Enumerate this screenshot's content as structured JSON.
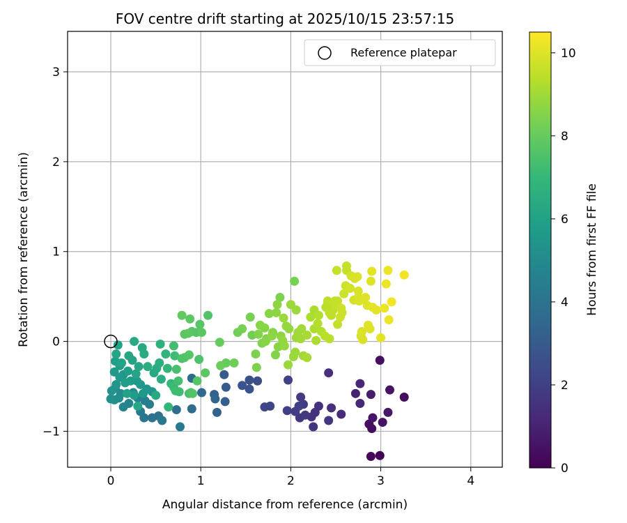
{
  "chart_data": {
    "type": "scatter",
    "title": "FOV centre drift starting at 2025/10/15 23:57:15",
    "xlabel": "Angular distance from reference (arcmin)",
    "ylabel": "Rotation from reference (arcmin)",
    "xlim": [
      -0.48,
      4.35
    ],
    "ylim": [
      -1.4,
      3.45
    ],
    "xticks": [
      0,
      1,
      2,
      3,
      4
    ],
    "yticks": [
      -1,
      0,
      1,
      2,
      3
    ],
    "xtick_labels": [
      "0",
      "1",
      "2",
      "3",
      "4"
    ],
    "ytick_labels": [
      "−1",
      "0",
      "1",
      "2",
      "3"
    ],
    "grid": true,
    "legend": {
      "placement": "top-right",
      "entries": [
        "Reference platepar"
      ]
    },
    "reference_point": {
      "x": 0,
      "y": 0
    },
    "colorbar": {
      "label": "Hours from first FF file",
      "range": [
        0,
        10.5
      ],
      "ticks": [
        0,
        2,
        4,
        6,
        8,
        10
      ],
      "tick_labels": [
        "0",
        "2",
        "4",
        "6",
        "8",
        "10"
      ],
      "colormap": [
        "#440154",
        "#482878",
        "#3e4989",
        "#31688e",
        "#26828e",
        "#1f9e89",
        "#35b779",
        "#6ece58",
        "#b5de2b",
        "#fde725"
      ]
    },
    "series": [
      {
        "points": [
          [
            2.99,
            -1.27,
            0.1
          ],
          [
            2.89,
            -1.28,
            0.2
          ],
          [
            2.9,
            -0.97,
            0.3
          ],
          [
            2.87,
            -0.92,
            0.4
          ],
          [
            3.02,
            -0.9,
            0.5
          ],
          [
            2.91,
            -0.85,
            0.6
          ],
          [
            3.08,
            -0.79,
            0.7
          ],
          [
            2.99,
            -0.21,
            0.4
          ],
          [
            3.1,
            -0.54,
            0.5
          ],
          [
            3.26,
            -0.62,
            0.4
          ],
          [
            2.89,
            -0.59,
            0.8
          ],
          [
            2.72,
            -0.58,
            1.0
          ],
          [
            2.77,
            -0.47,
            1.1
          ],
          [
            2.77,
            -0.69,
            1.2
          ],
          [
            2.56,
            -0.81,
            1.3
          ],
          [
            2.45,
            -0.74,
            1.4
          ],
          [
            2.31,
            -0.72,
            1.5
          ],
          [
            2.27,
            -0.79,
            1.5
          ],
          [
            2.23,
            -0.84,
            1.6
          ],
          [
            2.25,
            -0.95,
            1.6
          ],
          [
            2.42,
            -0.88,
            1.7
          ],
          [
            2.42,
            -0.35,
            1.5
          ],
          [
            2.11,
            -0.62,
            1.8
          ],
          [
            2.14,
            -0.7,
            1.9
          ],
          [
            2.09,
            -0.72,
            2.0
          ],
          [
            2.05,
            -0.78,
            1.9
          ],
          [
            2.16,
            -0.82,
            1.8
          ],
          [
            2.1,
            -0.85,
            1.7
          ],
          [
            1.96,
            -0.77,
            2.0
          ],
          [
            1.97,
            -0.43,
            2.1
          ],
          [
            1.77,
            -0.72,
            2.2
          ],
          [
            1.71,
            -0.73,
            2.2
          ],
          [
            1.63,
            -0.44,
            2.5
          ],
          [
            1.54,
            -0.43,
            2.6
          ],
          [
            1.54,
            -0.53,
            2.7
          ],
          [
            1.46,
            -0.49,
            2.8
          ],
          [
            1.26,
            -0.37,
            3.0
          ],
          [
            1.28,
            -0.51,
            3.1
          ],
          [
            1.27,
            -0.67,
            3.2
          ],
          [
            1.15,
            -0.59,
            3.3
          ],
          [
            1.16,
            -0.64,
            3.4
          ],
          [
            1.18,
            -0.79,
            3.3
          ],
          [
            1.01,
            -0.57,
            3.5
          ],
          [
            0.9,
            -0.41,
            3.6
          ],
          [
            0.9,
            -0.75,
            3.7
          ],
          [
            0.73,
            -0.76,
            3.8
          ],
          [
            0.53,
            -0.83,
            3.9
          ],
          [
            0.46,
            -0.85,
            4.0
          ],
          [
            0.37,
            -0.85,
            4.1
          ],
          [
            0.57,
            -0.88,
            4.2
          ],
          [
            0.77,
            -0.95,
            4.3
          ],
          [
            0.33,
            -0.78,
            4.3
          ],
          [
            0.43,
            -0.7,
            4.4
          ],
          [
            0.38,
            -0.66,
            4.5
          ],
          [
            0.3,
            -0.63,
            4.6
          ],
          [
            0.2,
            -0.69,
            4.7
          ],
          [
            0.14,
            -0.73,
            4.8
          ],
          [
            0.25,
            -0.57,
            4.9
          ],
          [
            0.11,
            -0.58,
            5.0
          ],
          [
            0.09,
            -0.63,
            5.1
          ],
          [
            0.04,
            -0.65,
            5.2
          ],
          [
            0.0,
            -0.64,
            5.3
          ],
          [
            0.05,
            -0.52,
            5.2
          ],
          [
            0.01,
            -0.55,
            5.4
          ],
          [
            0.06,
            -0.48,
            5.5
          ],
          [
            0.1,
            -0.4,
            5.6
          ],
          [
            0.04,
            -0.34,
            5.7
          ],
          [
            0.14,
            -0.37,
            5.5
          ],
          [
            0.1,
            -0.27,
            5.8
          ],
          [
            0.05,
            -0.22,
            5.9
          ],
          [
            0.12,
            -0.24,
            6.0
          ],
          [
            0.06,
            -0.14,
            6.1
          ],
          [
            0.08,
            -0.04,
            6.0
          ],
          [
            0.2,
            -0.16,
            6.2
          ],
          [
            0.24,
            -0.21,
            6.1
          ],
          [
            0.26,
            0.0,
            6.3
          ],
          [
            0.35,
            -0.07,
            6.3
          ],
          [
            0.37,
            -0.14,
            6.4
          ],
          [
            0.41,
            -0.28,
            6.5
          ],
          [
            0.51,
            -0.3,
            6.4
          ],
          [
            0.48,
            -0.35,
            6.3
          ],
          [
            0.31,
            -0.28,
            6.2
          ],
          [
            0.28,
            -0.36,
            6.1
          ],
          [
            0.19,
            -0.33,
            5.9
          ],
          [
            0.22,
            -0.44,
            5.8
          ],
          [
            0.29,
            -0.44,
            5.7
          ],
          [
            0.33,
            -0.48,
            5.6
          ],
          [
            0.4,
            -0.53,
            5.5
          ],
          [
            0.46,
            -0.56,
            5.4
          ],
          [
            0.36,
            -0.58,
            5.6
          ],
          [
            0.26,
            -0.6,
            5.8
          ],
          [
            0.18,
            -0.58,
            6.0
          ],
          [
            0.16,
            -0.46,
            5.9
          ],
          [
            0.3,
            -0.72,
            6.2
          ],
          [
            0.5,
            -0.6,
            6.3
          ],
          [
            0.56,
            -0.42,
            6.5
          ],
          [
            0.54,
            -0.24,
            6.6
          ],
          [
            0.55,
            -0.03,
            6.7
          ],
          [
            0.61,
            -0.14,
            6.8
          ],
          [
            0.63,
            -0.3,
            6.9
          ],
          [
            0.67,
            -0.47,
            7.0
          ],
          [
            0.64,
            -0.73,
            6.9
          ],
          [
            0.7,
            -0.51,
            7.1
          ],
          [
            0.72,
            -0.55,
            7.2
          ],
          [
            0.75,
            -0.44,
            7.3
          ],
          [
            0.76,
            -0.56,
            7.2
          ],
          [
            0.7,
            -0.05,
            7.3
          ],
          [
            0.71,
            -0.16,
            7.2
          ],
          [
            0.73,
            -0.31,
            7.4
          ],
          [
            0.79,
            -0.19,
            7.5
          ],
          [
            0.82,
            -0.18,
            7.6
          ],
          [
            0.87,
            -0.15,
            7.7
          ],
          [
            0.87,
            -0.58,
            7.4
          ],
          [
            0.89,
            -0.57,
            7.5
          ],
          [
            0.91,
            -0.58,
            7.6
          ],
          [
            0.96,
            -0.44,
            7.7
          ],
          [
            0.98,
            -0.2,
            7.5
          ],
          [
            0.82,
            0.08,
            7.8
          ],
          [
            0.86,
            0.09,
            7.8
          ],
          [
            0.9,
            0.11,
            7.7
          ],
          [
            0.95,
            0.1,
            7.6
          ],
          [
            1.01,
            0.1,
            7.8
          ],
          [
            0.99,
            0.19,
            7.7
          ],
          [
            0.88,
            0.25,
            7.8
          ],
          [
            0.79,
            0.29,
            7.9
          ],
          [
            1.08,
            0.29,
            7.6
          ],
          [
            1.05,
            -0.35,
            7.8
          ],
          [
            1.21,
            -0.01,
            8.0
          ],
          [
            1.28,
            -0.24,
            8.0
          ],
          [
            1.22,
            -0.27,
            8.1
          ],
          [
            1.37,
            -0.24,
            8.2
          ],
          [
            1.41,
            0.1,
            8.2
          ],
          [
            1.46,
            0.14,
            8.3
          ],
          [
            1.55,
            0.27,
            8.3
          ],
          [
            1.62,
            -0.29,
            8.4
          ],
          [
            1.61,
            -0.14,
            8.4
          ],
          [
            1.64,
            0.08,
            8.5
          ],
          [
            1.68,
            -0.02,
            8.5
          ],
          [
            1.72,
            0.0,
            8.6
          ],
          [
            1.66,
            0.18,
            8.6
          ],
          [
            1.71,
            0.15,
            8.6
          ],
          [
            1.73,
            0.03,
            8.5
          ],
          [
            1.79,
            0.06,
            8.7
          ],
          [
            1.8,
            0.1,
            8.6
          ],
          [
            1.76,
            0.31,
            8.6
          ],
          [
            1.84,
            0.32,
            8.7
          ],
          [
            1.85,
            0.41,
            8.7
          ],
          [
            1.88,
            0.49,
            8.4
          ],
          [
            1.89,
            0.06,
            8.7
          ],
          [
            1.91,
            0.01,
            8.8
          ],
          [
            1.93,
            -0.05,
            8.8
          ],
          [
            1.95,
            0.17,
            8.8
          ],
          [
            1.98,
            0.14,
            8.8
          ],
          [
            2.0,
            0.41,
            8.9
          ],
          [
            1.97,
            -0.26,
            8.9
          ],
          [
            2.03,
            -0.17,
            8.9
          ],
          [
            2.05,
            -0.12,
            8.9
          ],
          [
            2.06,
            0.04,
            8.9
          ],
          [
            2.06,
            0.35,
            8.9
          ],
          [
            2.04,
            0.67,
            8.3
          ],
          [
            1.92,
            0.26,
            8.9
          ],
          [
            2.08,
            0.1,
            9.0
          ],
          [
            2.11,
            0.03,
            9.0
          ],
          [
            2.12,
            0.14,
            9.0
          ],
          [
            2.18,
            0.07,
            9.1
          ],
          [
            2.18,
            -0.18,
            9.1
          ],
          [
            2.22,
            0.27,
            9.2
          ],
          [
            2.26,
            0.14,
            9.2
          ],
          [
            2.26,
            0.35,
            9.2
          ],
          [
            2.3,
            0.2,
            9.3
          ],
          [
            2.31,
            0.29,
            9.3
          ],
          [
            2.34,
            0.11,
            9.3
          ],
          [
            2.38,
            0.06,
            9.4
          ],
          [
            2.39,
            0.38,
            9.4
          ],
          [
            2.41,
            0.42,
            9.4
          ],
          [
            2.43,
            0.03,
            9.4
          ],
          [
            2.43,
            0.32,
            9.5
          ],
          [
            2.45,
            0.29,
            9.5
          ],
          [
            2.47,
            0.35,
            9.5
          ],
          [
            2.49,
            0.45,
            9.6
          ],
          [
            2.5,
            0.4,
            9.6
          ],
          [
            2.52,
            0.45,
            9.6
          ],
          [
            2.55,
            0.27,
            9.7
          ],
          [
            2.56,
            0.37,
            9.7
          ],
          [
            2.57,
            0.32,
            9.7
          ],
          [
            2.59,
            0.53,
            9.7
          ],
          [
            2.61,
            0.62,
            9.7
          ],
          [
            2.62,
            0.84,
            9.6
          ],
          [
            2.62,
            0.79,
            9.6
          ],
          [
            2.66,
            0.59,
            9.8
          ],
          [
            2.67,
            0.73,
            9.8
          ],
          [
            2.7,
            0.46,
            9.8
          ],
          [
            2.71,
            0.7,
            9.9
          ],
          [
            2.75,
            0.49,
            9.9
          ],
          [
            2.75,
            0.56,
            9.9
          ],
          [
            2.76,
            0.45,
            9.9
          ],
          [
            2.78,
            0.06,
            9.9
          ],
          [
            2.79,
            0.11,
            9.9
          ],
          [
            2.8,
            0.02,
            9.9
          ],
          [
            2.83,
            0.49,
            10.0
          ],
          [
            2.85,
            0.4,
            10.0
          ],
          [
            2.86,
            0.18,
            10.0
          ],
          [
            2.88,
            0.14,
            10.0
          ],
          [
            2.89,
            0.67,
            10.0
          ],
          [
            2.9,
            0.78,
            10.1
          ],
          [
            2.91,
            0.38,
            10.1
          ],
          [
            2.95,
            0.35,
            10.1
          ],
          [
            3.0,
            0.04,
            10.1
          ],
          [
            3.04,
            0.37,
            10.2
          ],
          [
            3.06,
            0.64,
            10.2
          ],
          [
            3.08,
            0.79,
            10.2
          ],
          [
            3.09,
            0.24,
            10.2
          ],
          [
            3.12,
            0.44,
            10.3
          ],
          [
            3.26,
            0.74,
            10.3
          ],
          [
            2.81,
            0.47,
            10.0
          ],
          [
            2.74,
            0.72,
            9.9
          ],
          [
            2.51,
            0.79,
            9.6
          ],
          [
            2.52,
            0.19,
            9.6
          ],
          [
            2.41,
            0.45,
            9.5
          ],
          [
            2.28,
            0.01,
            9.2
          ],
          [
            1.86,
            -0.06,
            8.6
          ],
          [
            1.83,
            -0.15,
            8.5
          ],
          [
            1.57,
            0.07,
            8.2
          ],
          [
            2.14,
            -0.16,
            9.0
          ]
        ]
      }
    ]
  }
}
